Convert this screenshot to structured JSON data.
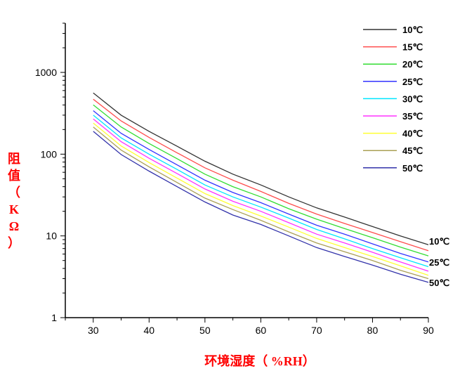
{
  "chart_data": {
    "type": "line",
    "title": "",
    "xlabel": "环境湿度（ %RH）",
    "ylabel": "阻值（KΩ）",
    "xlim": [
      25,
      90
    ],
    "ylim": [
      1,
      4000
    ],
    "yscale": "log",
    "grid": false,
    "legend_position": "top-right",
    "x_ticks": [
      "30",
      "40",
      "50",
      "60",
      "70",
      "80",
      "90"
    ],
    "y_ticks": [
      "1",
      "10",
      "100",
      "1000"
    ],
    "x": [
      30,
      35,
      40,
      45,
      50,
      55,
      60,
      65,
      70,
      75,
      80,
      85,
      90
    ],
    "series": [
      {
        "name": "10℃",
        "color": "#333333",
        "values": [
          560,
          300,
          190,
          125,
          82,
          57,
          42,
          30,
          22,
          17,
          13,
          10,
          7.8
        ]
      },
      {
        "name": "15℃",
        "color": "#ff4d4d",
        "values": [
          470,
          255,
          160,
          104,
          68,
          48,
          35,
          25,
          18.5,
          14.2,
          11,
          8.5,
          6.6
        ]
      },
      {
        "name": "20℃",
        "color": "#33dd33",
        "values": [
          400,
          215,
          135,
          88,
          57,
          40,
          30,
          21.5,
          16,
          12.3,
          9.5,
          7.3,
          5.7
        ]
      },
      {
        "name": "25℃",
        "color": "#3333ff",
        "values": [
          340,
          180,
          114,
          74,
          48,
          34,
          25.5,
          18.5,
          13.5,
          10.5,
          8,
          6.1,
          4.8
        ]
      },
      {
        "name": "30℃",
        "color": "#00e5ff",
        "values": [
          300,
          158,
          100,
          65,
          42,
          30,
          22.5,
          16.5,
          12,
          9.2,
          7,
          5.4,
          4.2
        ]
      },
      {
        "name": "35℃",
        "color": "#ff33ff",
        "values": [
          270,
          142,
          89,
          58,
          37.5,
          26.5,
          20,
          14.5,
          10.5,
          8.2,
          6.3,
          4.8,
          3.7
        ]
      },
      {
        "name": "40℃",
        "color": "#ffff33",
        "values": [
          240,
          126,
          79,
          51,
          33,
          23.5,
          17.5,
          12.8,
          9.3,
          7.2,
          5.6,
          4.3,
          3.3
        ]
      },
      {
        "name": "45℃",
        "color": "#aaa055",
        "values": [
          215,
          112,
          70,
          45,
          29,
          21,
          15.5,
          11.2,
          8.2,
          6.4,
          5,
          3.8,
          3
        ]
      },
      {
        "name": "50℃",
        "color": "#3333aa",
        "values": [
          190,
          99,
          62,
          40,
          26,
          18,
          13.8,
          10,
          7.2,
          5.6,
          4.4,
          3.4,
          2.7
        ]
      }
    ],
    "end_labels": [
      {
        "text": "10℃",
        "series": 0
      },
      {
        "text": "25℃",
        "series": 3
      },
      {
        "text": "50℃",
        "series": 8
      }
    ]
  }
}
